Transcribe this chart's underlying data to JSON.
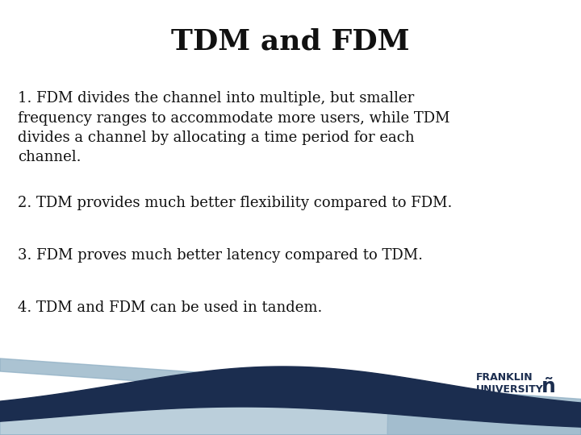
{
  "title": "TDM and FDM",
  "title_fontsize": 26,
  "title_color": "#111111",
  "background_color": "#ffffff",
  "text_color": "#111111",
  "body_fontsize": 13,
  "points": [
    "1. FDM divides the channel into multiple, but smaller\nfrequency ranges to accommodate more users, while TDM\ndivides a channel by allocating a time period for each\nchannel.",
    "2. TDM provides much better flexibility compared to FDM.",
    "3. FDM proves much better latency compared to TDM.",
    "4. TDM and FDM can be used in tandem."
  ],
  "points_y": [
    0.79,
    0.55,
    0.43,
    0.31
  ],
  "dark_navy": "#1b2d4f",
  "light_blue": "#8fafc4",
  "logo_text_color": "#1b2d4f",
  "logo_fontsize": 9
}
